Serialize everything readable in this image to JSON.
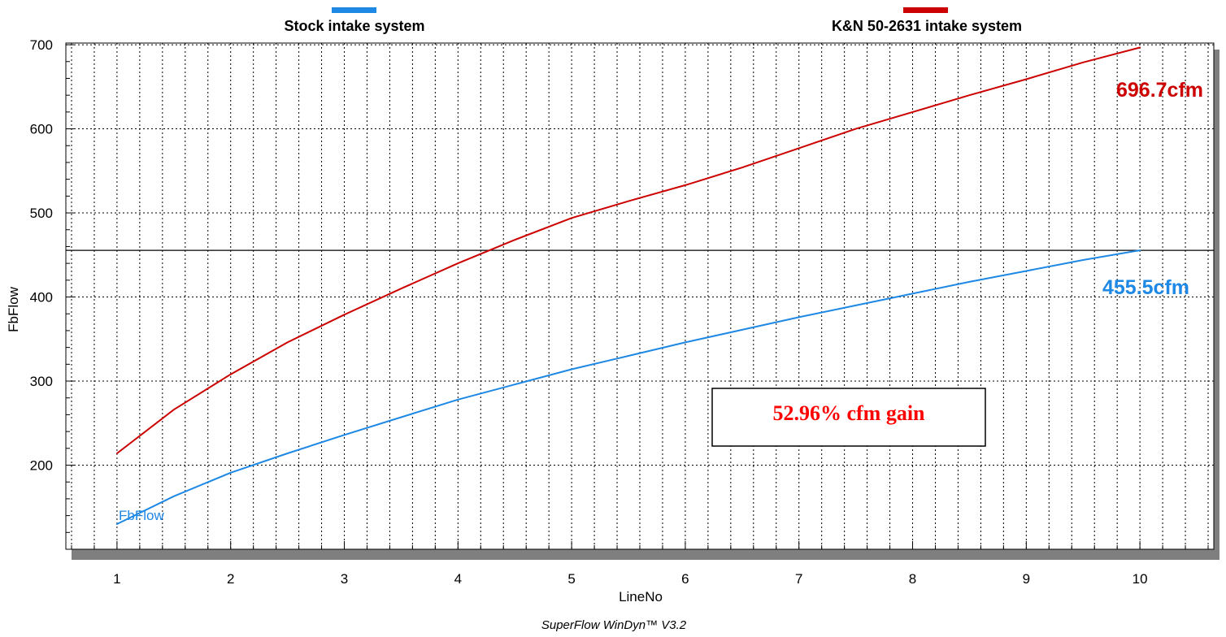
{
  "footer": "SuperFlow WinDyn™ V3.2",
  "chart_data": {
    "type": "line",
    "xlabel": "LineNo",
    "ylabel": "FbFlow",
    "xlim": [
      0.55,
      10.65
    ],
    "ylim": [
      100,
      702
    ],
    "x_ticks": [
      1,
      2,
      3,
      4,
      5,
      6,
      7,
      8,
      9,
      10
    ],
    "y_ticks": [
      200,
      300,
      400,
      500,
      600,
      700
    ],
    "grid": true,
    "legend_position": "top",
    "reference_line_y": 455.5,
    "series": [
      {
        "name": "Stock intake system",
        "color": "#1e88e5",
        "tag": "FbFlow",
        "end_label": "455.5cfm",
        "x": [
          1,
          1.5,
          2,
          2.5,
          3,
          3.5,
          4,
          4.5,
          5,
          5.5,
          6,
          6.5,
          7,
          7.5,
          8,
          8.5,
          9,
          9.5,
          10
        ],
        "y": [
          130,
          163,
          191,
          214,
          236,
          257,
          278,
          296,
          314,
          330,
          346,
          361,
          376,
          390,
          404,
          418,
          431,
          444,
          455.5
        ]
      },
      {
        "name": "K&N 50-2631 intake system",
        "color": "#cc0000",
        "end_label": "696.7cfm",
        "x": [
          1,
          1.5,
          2,
          2.5,
          3,
          3.5,
          4,
          4.5,
          5,
          5.5,
          6,
          6.5,
          7,
          7.5,
          8,
          8.5,
          9,
          9.5,
          10
        ],
        "y": [
          214,
          266,
          308,
          346,
          379,
          410,
          440,
          468,
          494,
          514,
          533,
          554,
          577,
          600,
          620,
          640,
          659,
          679,
          696.7
        ]
      }
    ],
    "annotation": "52.96% cfm gain"
  }
}
